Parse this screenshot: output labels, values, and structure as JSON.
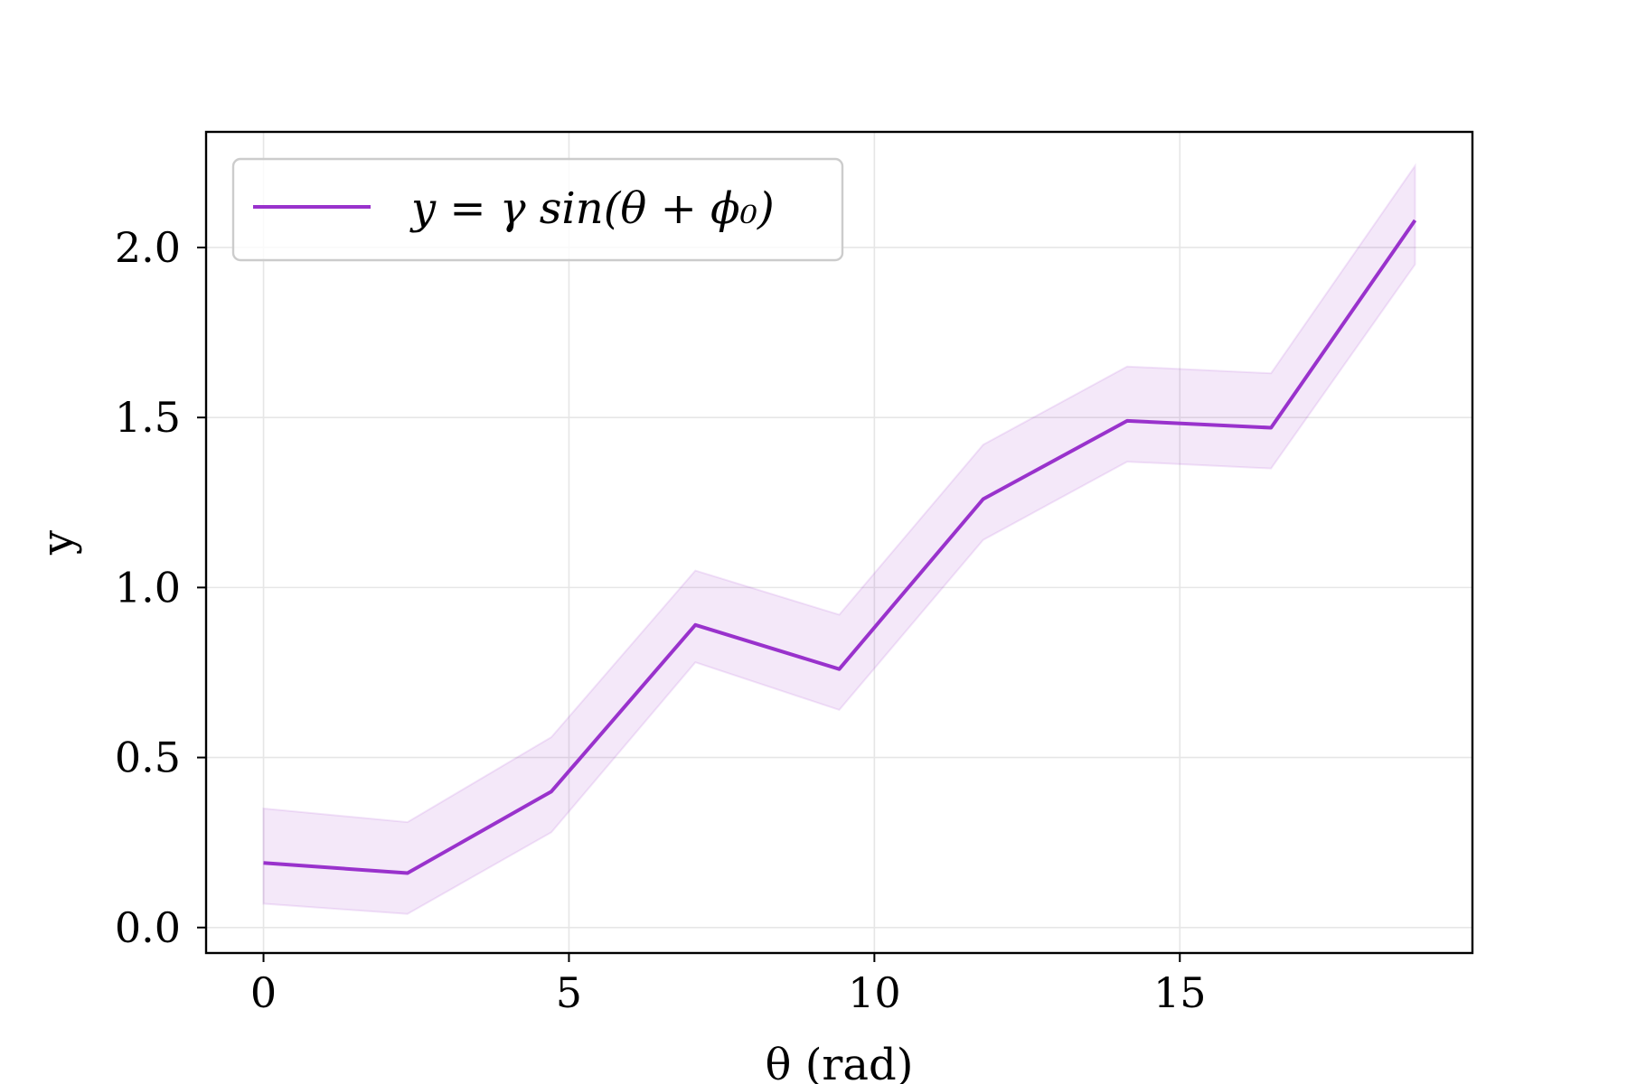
{
  "chart_data": {
    "type": "line",
    "xlabel": "θ (rad)",
    "ylabel": "y",
    "xlim": [
      -0.94,
      19.79
    ],
    "ylim": [
      -0.075,
      2.34
    ],
    "xticks": [
      0,
      5,
      10,
      15
    ],
    "yticks": [
      0.0,
      0.5,
      1.0,
      1.5,
      2.0
    ],
    "xtick_labels": [
      "0",
      "5",
      "10",
      "15"
    ],
    "ytick_labels": [
      "0.0",
      "0.5",
      "1.0",
      "1.5",
      "2.0"
    ],
    "grid": true,
    "legend_position": "upper-left",
    "colors": {
      "line": "#9932CC",
      "band": "#9932CC",
      "grid": "#e6e6e6",
      "frame": "#000000"
    },
    "series": [
      {
        "name": "y = γ sin(θ + ϕ₀)",
        "x": [
          0,
          2.356,
          4.712,
          7.069,
          9.425,
          11.781,
          14.137,
          16.493,
          18.85
        ],
        "y": [
          0.19,
          0.16,
          0.4,
          0.89,
          0.76,
          1.26,
          1.49,
          1.47,
          2.08
        ],
        "lower": [
          0.07,
          0.04,
          0.28,
          0.78,
          0.64,
          1.14,
          1.37,
          1.35,
          1.95
        ],
        "upper": [
          0.35,
          0.31,
          0.56,
          1.05,
          0.92,
          1.42,
          1.65,
          1.63,
          2.24
        ]
      }
    ]
  }
}
